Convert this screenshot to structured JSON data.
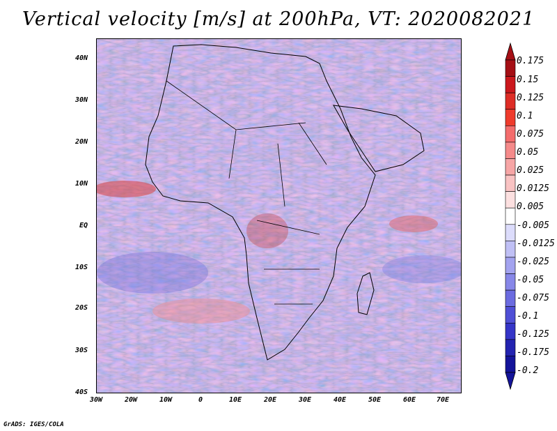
{
  "title": "Vertical velocity [m/s] at 200hPa, VT: 2020082021",
  "footer": "GrADS: IGES/COLA",
  "map": {
    "lat_labels": [
      "40N",
      "30N",
      "20N",
      "10N",
      "EQ",
      "10S",
      "20S",
      "30S",
      "40S"
    ],
    "lon_labels": [
      "30W",
      "20W",
      "10W",
      "0",
      "10E",
      "20E",
      "30E",
      "40E",
      "50E",
      "60E",
      "70E"
    ],
    "extent": {
      "lon_min": -30,
      "lon_max": 75,
      "lat_min": -40,
      "lat_max": 45
    }
  },
  "colorbar": {
    "labels": [
      "0.175",
      "0.15",
      "0.125",
      "0.1",
      "0.075",
      "0.05",
      "0.025",
      "0.0125",
      "0.005",
      "-0.005",
      "-0.0125",
      "-0.025",
      "-0.05",
      "-0.075",
      "-0.1",
      "-0.125",
      "-0.175",
      "-0.2"
    ],
    "colors": [
      "#a50f15",
      "#cb181d",
      "#de2d26",
      "#ef3b2c",
      "#f46d6d",
      "#f58a8a",
      "#f7a6a6",
      "#f9c3c3",
      "#fce0e0",
      "#ffffff",
      "#dcdcfb",
      "#c0c0f5",
      "#a3a3ef",
      "#8787e8",
      "#6b6be0",
      "#4f4fd6",
      "#3535c8",
      "#2323b0",
      "#14149a"
    ]
  }
}
